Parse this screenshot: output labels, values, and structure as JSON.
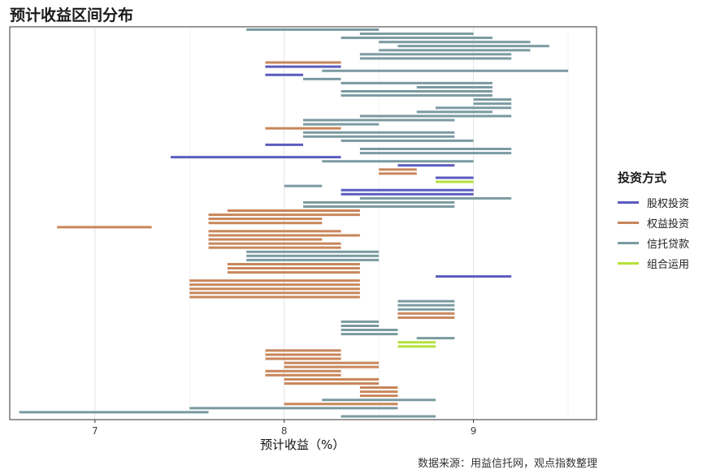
{
  "chart_data": {
    "type": "range-bar",
    "title": "预计收益区间分布",
    "xlabel": "预计收益（%）",
    "ylabel": "",
    "xlim": [
      6.55,
      9.65
    ],
    "x_ticks": [
      7,
      8,
      9
    ],
    "grid": true,
    "legend": {
      "title": "投资方式",
      "position": "right",
      "entries": [
        {
          "key": "equity",
          "label": "股权投资",
          "color": "#5b5bbf"
        },
        {
          "key": "rights",
          "label": "权益投资",
          "color": "#c8865a"
        },
        {
          "key": "trust",
          "label": "信托贷款",
          "color": "#7a9aa0"
        },
        {
          "key": "mixed",
          "label": "组合运用",
          "color": "#b4e03a"
        }
      ]
    },
    "source": "数据来源：用益信托网，观点指数整理",
    "ranges": [
      [
        "trust",
        7.8,
        8.5
      ],
      [
        "trust",
        8.4,
        9.0
      ],
      [
        "trust",
        8.3,
        9.1
      ],
      [
        "trust",
        8.5,
        9.3
      ],
      [
        "trust",
        8.6,
        9.4
      ],
      [
        "trust",
        8.5,
        9.3
      ],
      [
        "trust",
        8.4,
        9.2
      ],
      [
        "trust",
        8.4,
        9.2
      ],
      [
        "rights",
        7.9,
        8.3
      ],
      [
        "equity",
        7.9,
        8.3
      ],
      [
        "trust",
        8.2,
        9.5
      ],
      [
        "equity",
        7.9,
        8.1
      ],
      [
        "trust",
        8.1,
        8.3
      ],
      [
        "trust",
        8.3,
        9.1
      ],
      [
        "trust",
        8.7,
        9.1
      ],
      [
        "trust",
        8.3,
        9.1
      ],
      [
        "trust",
        8.3,
        9.1
      ],
      [
        "trust",
        9.0,
        9.2
      ],
      [
        "trust",
        9.0,
        9.2
      ],
      [
        "trust",
        8.8,
        9.2
      ],
      [
        "trust",
        8.7,
        9.1
      ],
      [
        "trust",
        8.4,
        9.2
      ],
      [
        "trust",
        8.1,
        8.9
      ],
      [
        "trust",
        8.1,
        8.5
      ],
      [
        "rights",
        7.9,
        8.3
      ],
      [
        "trust",
        8.1,
        8.9
      ],
      [
        "trust",
        8.1,
        8.9
      ],
      [
        "trust",
        8.3,
        9.0
      ],
      [
        "equity",
        7.9,
        8.1
      ],
      [
        "trust",
        8.4,
        9.2
      ],
      [
        "trust",
        8.4,
        9.2
      ],
      [
        "equity",
        7.4,
        8.3
      ],
      [
        "trust",
        8.2,
        9.0
      ],
      [
        "equity",
        8.6,
        8.9
      ],
      [
        "rights",
        8.5,
        8.7
      ],
      [
        "rights",
        8.5,
        8.7
      ],
      [
        "equity",
        8.8,
        9.0
      ],
      [
        "mixed",
        8.8,
        9.0
      ],
      [
        "trust",
        8.0,
        8.2
      ],
      [
        "equity",
        8.3,
        9.0
      ],
      [
        "equity",
        8.3,
        9.0
      ],
      [
        "trust",
        8.4,
        9.2
      ],
      [
        "trust",
        8.1,
        8.9
      ],
      [
        "trust",
        8.1,
        8.9
      ],
      [
        "rights",
        7.7,
        8.4
      ],
      [
        "rights",
        7.6,
        8.4
      ],
      [
        "rights",
        7.6,
        8.2
      ],
      [
        "rights",
        7.6,
        8.2
      ],
      [
        "rights",
        6.8,
        7.3
      ],
      [
        "rights",
        7.6,
        8.3
      ],
      [
        "rights",
        7.6,
        8.4
      ],
      [
        "rights",
        7.6,
        8.2
      ],
      [
        "rights",
        7.6,
        8.3
      ],
      [
        "rights",
        7.6,
        8.3
      ],
      [
        "trust",
        7.8,
        8.5
      ],
      [
        "trust",
        7.8,
        8.5
      ],
      [
        "trust",
        7.8,
        8.5
      ],
      [
        "rights",
        7.7,
        8.4
      ],
      [
        "rights",
        7.7,
        8.4
      ],
      [
        "rights",
        7.7,
        8.4
      ],
      [
        "equity",
        8.8,
        9.2
      ],
      [
        "rights",
        7.5,
        8.4
      ],
      [
        "rights",
        7.5,
        8.4
      ],
      [
        "rights",
        7.5,
        8.4
      ],
      [
        "rights",
        7.5,
        8.4
      ],
      [
        "rights",
        7.5,
        8.4
      ],
      [
        "trust",
        8.6,
        8.9
      ],
      [
        "trust",
        8.6,
        8.9
      ],
      [
        "trust",
        8.6,
        8.9
      ],
      [
        "rights",
        8.6,
        8.9
      ],
      [
        "rights",
        8.6,
        8.9
      ],
      [
        "trust",
        8.3,
        8.5
      ],
      [
        "trust",
        8.3,
        8.5
      ],
      [
        "trust",
        8.3,
        8.6
      ],
      [
        "trust",
        8.3,
        8.6
      ],
      [
        "trust",
        8.7,
        8.9
      ],
      [
        "mixed",
        8.6,
        8.8
      ],
      [
        "mixed",
        8.6,
        8.8
      ],
      [
        "rights",
        7.9,
        8.3
      ],
      [
        "rights",
        7.9,
        8.3
      ],
      [
        "rights",
        7.9,
        8.3
      ],
      [
        "rights",
        8.0,
        8.5
      ],
      [
        "rights",
        8.0,
        8.5
      ],
      [
        "rights",
        7.9,
        8.3
      ],
      [
        "rights",
        7.9,
        8.3
      ],
      [
        "rights",
        8.0,
        8.5
      ],
      [
        "rights",
        8.0,
        8.5
      ],
      [
        "rights",
        8.4,
        8.6
      ],
      [
        "rights",
        8.4,
        8.6
      ],
      [
        "rights",
        8.4,
        8.6
      ],
      [
        "trust",
        8.2,
        8.8
      ],
      [
        "rights",
        8.0,
        8.6
      ],
      [
        "trust",
        7.5,
        8.6
      ],
      [
        "trust",
        6.6,
        7.6
      ],
      [
        "trust",
        8.3,
        8.8
      ]
    ]
  }
}
